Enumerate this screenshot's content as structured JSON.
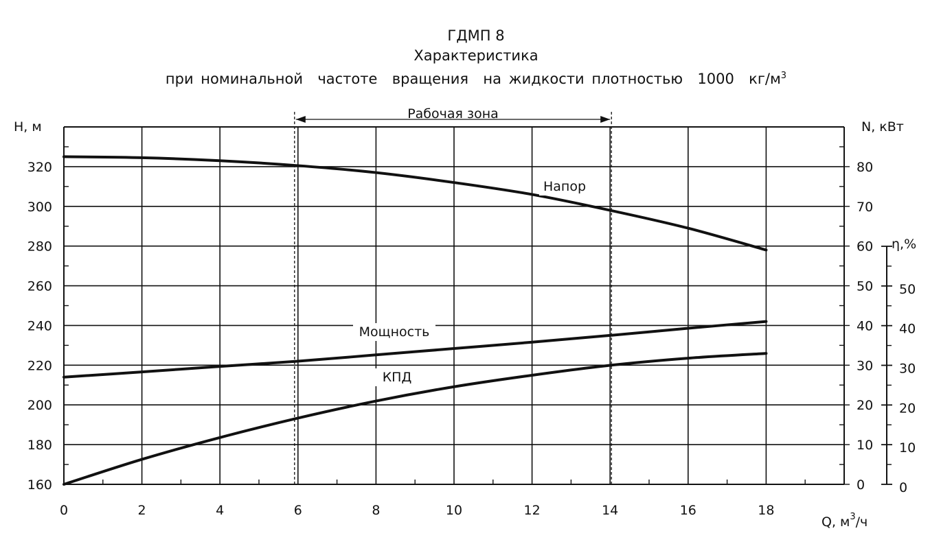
{
  "title": {
    "line1": "ГДМП 8",
    "line2": "Характеристика",
    "line3": "при номинальной  частоте  вращения  на жидкости плотностью  1000  кг/м",
    "line3_sup": "3"
  },
  "chart_data": {
    "type": "line",
    "x_axis": {
      "label": "Q,  м",
      "label_sup": "3",
      "label_suffix": "/ч",
      "range": [
        0,
        20
      ],
      "ticks": [
        0,
        2,
        4,
        6,
        8,
        10,
        12,
        14,
        16,
        18
      ]
    },
    "y_axis_left": {
      "label": "Н,  м",
      "range": [
        160,
        340
      ],
      "ticks": [
        160,
        180,
        200,
        220,
        240,
        260,
        280,
        300,
        320
      ]
    },
    "y_axis_right": {
      "label": "N, кВт",
      "range": [
        0,
        90
      ],
      "ticks": [
        0,
        10,
        20,
        30,
        40,
        50,
        60,
        70,
        80
      ]
    },
    "y_axis_eta": {
      "label": "η,%",
      "range": [
        0,
        60
      ],
      "ticks": [
        0,
        10,
        20,
        30,
        40,
        50
      ]
    },
    "working_zone": {
      "label": "Рабочая зона",
      "x_range": [
        6,
        14
      ]
    },
    "grid": true,
    "series": [
      {
        "name": "Напор",
        "axis": "left",
        "x": [
          0,
          2,
          4,
          6,
          8,
          10,
          12,
          14,
          16,
          18
        ],
        "y": [
          325,
          324.5,
          323,
          320.5,
          317,
          312,
          306,
          298,
          289,
          278
        ]
      },
      {
        "name": "Мощность",
        "axis": "right",
        "x": [
          0,
          2,
          4,
          6,
          8,
          10,
          12,
          14,
          16,
          18
        ],
        "y": [
          27,
          28.3,
          29.7,
          31,
          32.6,
          34.2,
          35.8,
          37.5,
          39.3,
          41
        ]
      },
      {
        "name": "КПД",
        "axis": "eta",
        "x": [
          0,
          2,
          4,
          6,
          8,
          10,
          12,
          14,
          16,
          18
        ],
        "y": [
          0,
          6.3,
          11.8,
          16.7,
          21,
          24.6,
          27.5,
          30,
          31.8,
          33
        ]
      }
    ]
  }
}
